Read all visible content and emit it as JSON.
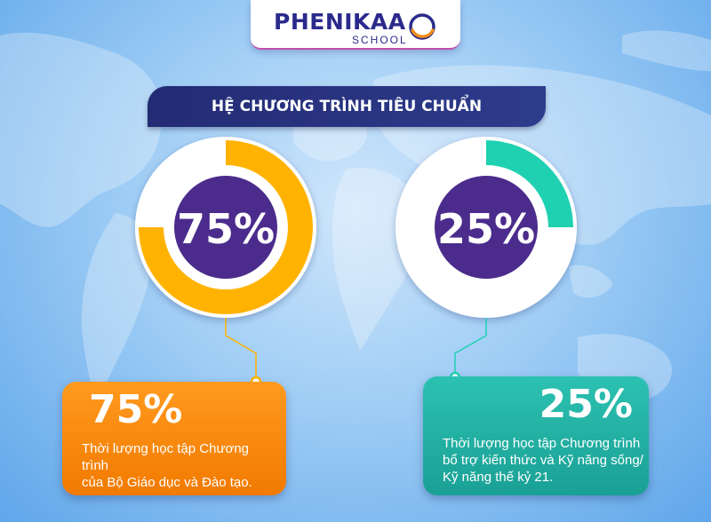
{
  "logo": {
    "brand": "PHENIKAA",
    "sub": "SCHOOL",
    "mark": "phenikaa-ring-logo"
  },
  "title": "HỆ CHƯƠNG TRÌNH TIÊU CHUẨN",
  "colors": {
    "orange": "#ffb300",
    "teal": "#1fd1b0",
    "purple": "#4b2c8c",
    "navy": "#232b74"
  },
  "chart_data": [
    {
      "type": "pie",
      "variant": "donut",
      "value": 75,
      "max": 100,
      "center_label": "75%",
      "color": "#ffb300",
      "card_value": "75%",
      "card_lines": [
        "Thời lượng học tập Chương trình",
        "của Bộ Giáo dục và Đào tạo."
      ]
    },
    {
      "type": "pie",
      "variant": "donut",
      "value": 25,
      "max": 100,
      "center_label": "25%",
      "color": "#1fd1b0",
      "card_value": "25%",
      "card_lines": [
        "Thời lượng học tập Chương trình",
        "bổ trợ kiến thức và Kỹ năng sống/",
        "Kỹ năng thế kỷ 21."
      ]
    }
  ]
}
